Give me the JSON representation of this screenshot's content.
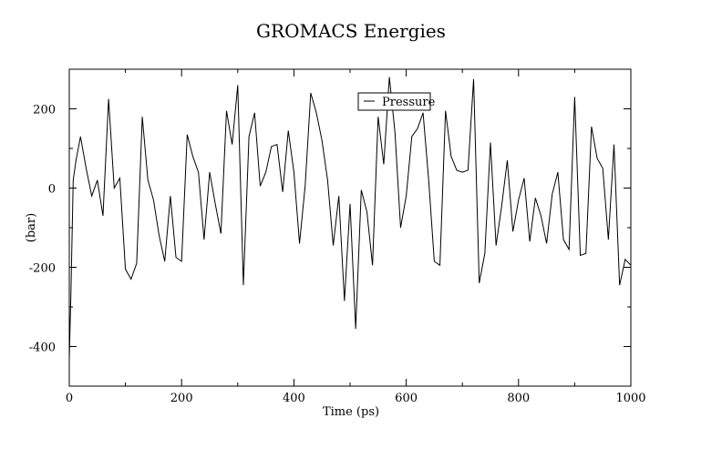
{
  "chart_data": {
    "type": "line",
    "title": "GROMACS Energies",
    "xlabel": "Time (ps)",
    "ylabel": "(bar)",
    "xlim": [
      0,
      1000
    ],
    "ylim": [
      -500,
      300
    ],
    "x_ticks": [
      0,
      200,
      400,
      600,
      800,
      1000
    ],
    "y_ticks": [
      -400,
      -200,
      0,
      200
    ],
    "grid": false,
    "legend": "top-center",
    "colors": {
      "line": "#000000",
      "axes": "#000000",
      "background": "#ffffff"
    },
    "series": [
      {
        "name": "Pressure",
        "x": [
          0,
          3,
          7,
          12,
          20,
          30,
          40,
          50,
          60,
          70,
          80,
          90,
          100,
          110,
          120,
          130,
          140,
          150,
          160,
          170,
          180,
          190,
          200,
          210,
          220,
          230,
          240,
          250,
          260,
          270,
          280,
          290,
          300,
          310,
          320,
          330,
          340,
          350,
          360,
          370,
          380,
          390,
          400,
          410,
          420,
          430,
          440,
          450,
          460,
          470,
          480,
          490,
          500,
          510,
          520,
          530,
          540,
          550,
          560,
          570,
          580,
          590,
          600,
          610,
          620,
          630,
          640,
          650,
          660,
          670,
          680,
          690,
          700,
          710,
          720,
          730,
          740,
          750,
          760,
          770,
          780,
          790,
          800,
          810,
          820,
          830,
          840,
          850,
          860,
          870,
          880,
          890,
          900,
          910,
          920,
          930,
          940,
          950,
          960,
          970,
          980,
          990,
          1000
        ],
        "values": [
          -430,
          -260,
          20,
          70,
          130,
          50,
          -20,
          20,
          -70,
          225,
          0,
          25,
          -205,
          -230,
          -190,
          180,
          20,
          -30,
          -120,
          -185,
          -20,
          -175,
          -185,
          135,
          80,
          40,
          -130,
          40,
          -40,
          -115,
          195,
          110,
          260,
          -245,
          130,
          190,
          5,
          40,
          105,
          110,
          -10,
          145,
          40,
          -140,
          5,
          240,
          190,
          120,
          20,
          -145,
          -20,
          -285,
          -40,
          -355,
          -5,
          -60,
          -195,
          180,
          60,
          280,
          140,
          -100,
          -20,
          130,
          150,
          190,
          20,
          -185,
          -195,
          195,
          80,
          45,
          40,
          45,
          275,
          -240,
          -165,
          115,
          -145,
          -45,
          70,
          -110,
          -30,
          25,
          -135,
          -25,
          -70,
          -140,
          -15,
          40,
          -130,
          -155,
          230,
          -170,
          -165,
          155,
          75,
          50,
          -130,
          110,
          -245,
          -180,
          -195
        ]
      }
    ]
  }
}
